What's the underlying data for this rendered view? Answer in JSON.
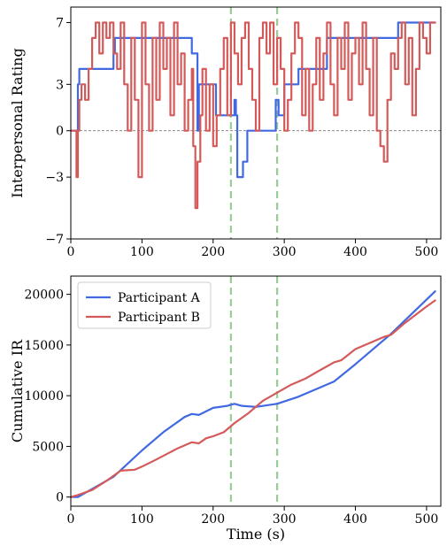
{
  "chart_data": [
    {
      "type": "line",
      "title": "",
      "xlabel": "",
      "ylabel": "Interpersonal Rating",
      "xlim": [
        0,
        520
      ],
      "ylim": [
        -7,
        8
      ],
      "xticks": [
        0,
        100,
        200,
        300,
        400,
        500
      ],
      "yticks": [
        -7,
        -3,
        0,
        3,
        7
      ],
      "grid": false,
      "zero_line": true,
      "vlines": [
        225,
        290
      ],
      "series": [
        {
          "name": "Participant A",
          "color": "#4169e1",
          "step": true,
          "x": [
            0,
            8,
            10,
            12,
            58,
            60,
            62,
            120,
            122,
            125,
            168,
            170,
            172,
            178,
            180,
            200,
            202,
            204,
            208,
            212,
            218,
            230,
            232,
            234,
            240,
            242,
            246,
            248,
            262,
            264,
            285,
            288,
            292,
            298,
            300,
            318,
            320,
            358,
            360,
            370,
            372,
            458,
            460,
            512
          ],
          "values": [
            0,
            0,
            3,
            4,
            4,
            5,
            6,
            6,
            6,
            6,
            6,
            5,
            5,
            0,
            3,
            3,
            3,
            1,
            1,
            1,
            1,
            2,
            1,
            -3,
            -3,
            -2,
            -2,
            0,
            0,
            0,
            0,
            2,
            1,
            1,
            3,
            3,
            4,
            4,
            6,
            6,
            6,
            6,
            7,
            7
          ]
        },
        {
          "name": "Participant B",
          "color": "#d45a5a",
          "step": true,
          "x": [
            0,
            8,
            10,
            12,
            15,
            20,
            25,
            30,
            35,
            40,
            45,
            50,
            55,
            60,
            65,
            70,
            75,
            80,
            85,
            90,
            95,
            100,
            105,
            110,
            115,
            120,
            125,
            130,
            135,
            140,
            145,
            150,
            155,
            160,
            165,
            170,
            172,
            175,
            178,
            182,
            185,
            190,
            195,
            200,
            205,
            210,
            215,
            220,
            225,
            230,
            235,
            240,
            245,
            250,
            255,
            260,
            265,
            270,
            275,
            280,
            285,
            290,
            295,
            300,
            305,
            310,
            315,
            320,
            325,
            330,
            335,
            340,
            345,
            350,
            355,
            360,
            365,
            370,
            375,
            380,
            385,
            390,
            395,
            400,
            405,
            410,
            415,
            420,
            425,
            430,
            435,
            440,
            445,
            450,
            455,
            460,
            465,
            470,
            475,
            480,
            485,
            490,
            495,
            500,
            505,
            512
          ],
          "values": [
            0,
            -3,
            0,
            2,
            3,
            2,
            4,
            6,
            7,
            5,
            7,
            6,
            7,
            5,
            4,
            7,
            3,
            0,
            6,
            2,
            -3,
            7,
            3,
            0,
            6,
            2,
            7,
            4,
            6,
            1,
            7,
            3,
            5,
            0,
            2,
            4,
            -1,
            -5,
            -2,
            1,
            4,
            0,
            3,
            -1,
            1,
            4,
            6,
            1,
            7,
            5,
            3,
            6,
            7,
            4,
            2,
            0,
            6,
            7,
            5,
            7,
            3,
            6,
            4,
            0,
            2,
            5,
            7,
            6,
            1,
            4,
            0,
            3,
            6,
            2,
            5,
            7,
            3,
            1,
            6,
            4,
            7,
            2,
            5,
            6,
            3,
            7,
            4,
            1,
            6,
            0,
            -1,
            -2,
            2,
            5,
            4,
            6,
            7,
            3,
            6,
            1,
            4,
            7,
            6,
            5,
            7,
            7
          ]
        }
      ]
    },
    {
      "type": "line",
      "title": "",
      "xlabel": "Time (s)",
      "ylabel": "Cumulative IR",
      "xlim": [
        0,
        520
      ],
      "ylim": [
        -900,
        21800
      ],
      "xticks": [
        0,
        100,
        200,
        300,
        400,
        500
      ],
      "yticks": [
        0,
        5000,
        10000,
        15000,
        20000
      ],
      "grid": false,
      "legend_position": "upper-left",
      "vlines": [
        225,
        290
      ],
      "series": [
        {
          "name": "Participant A",
          "color": "#4169e1",
          "x": [
            0,
            10,
            60,
            100,
            130,
            160,
            170,
            180,
            200,
            220,
            230,
            240,
            260,
            290,
            320,
            350,
            370,
            400,
            450,
            512
          ],
          "values": [
            0,
            0,
            2000,
            4600,
            6400,
            7900,
            8200,
            8100,
            8800,
            9000,
            9200,
            9000,
            8900,
            9200,
            9900,
            10800,
            11400,
            13100,
            16100,
            20300
          ]
        },
        {
          "name": "Participant B",
          "color": "#d45a5a",
          "x": [
            0,
            10,
            30,
            50,
            70,
            90,
            100,
            120,
            150,
            170,
            180,
            190,
            200,
            215,
            230,
            250,
            270,
            290,
            310,
            330,
            350,
            370,
            380,
            400,
            420,
            440,
            450,
            470,
            500,
            512
          ],
          "values": [
            0,
            200,
            700,
            1600,
            2600,
            2700,
            3000,
            3700,
            4800,
            5400,
            5300,
            5800,
            6000,
            6400,
            7300,
            8300,
            9500,
            10300,
            11100,
            11700,
            12500,
            13300,
            13500,
            14600,
            15200,
            15800,
            16000,
            17200,
            18800,
            19400
          ]
        }
      ]
    }
  ],
  "styles": {
    "vline_color": "#99cc99",
    "zero_line_color": "#777777",
    "axis_color": "#000000",
    "background": "#ffffff"
  }
}
